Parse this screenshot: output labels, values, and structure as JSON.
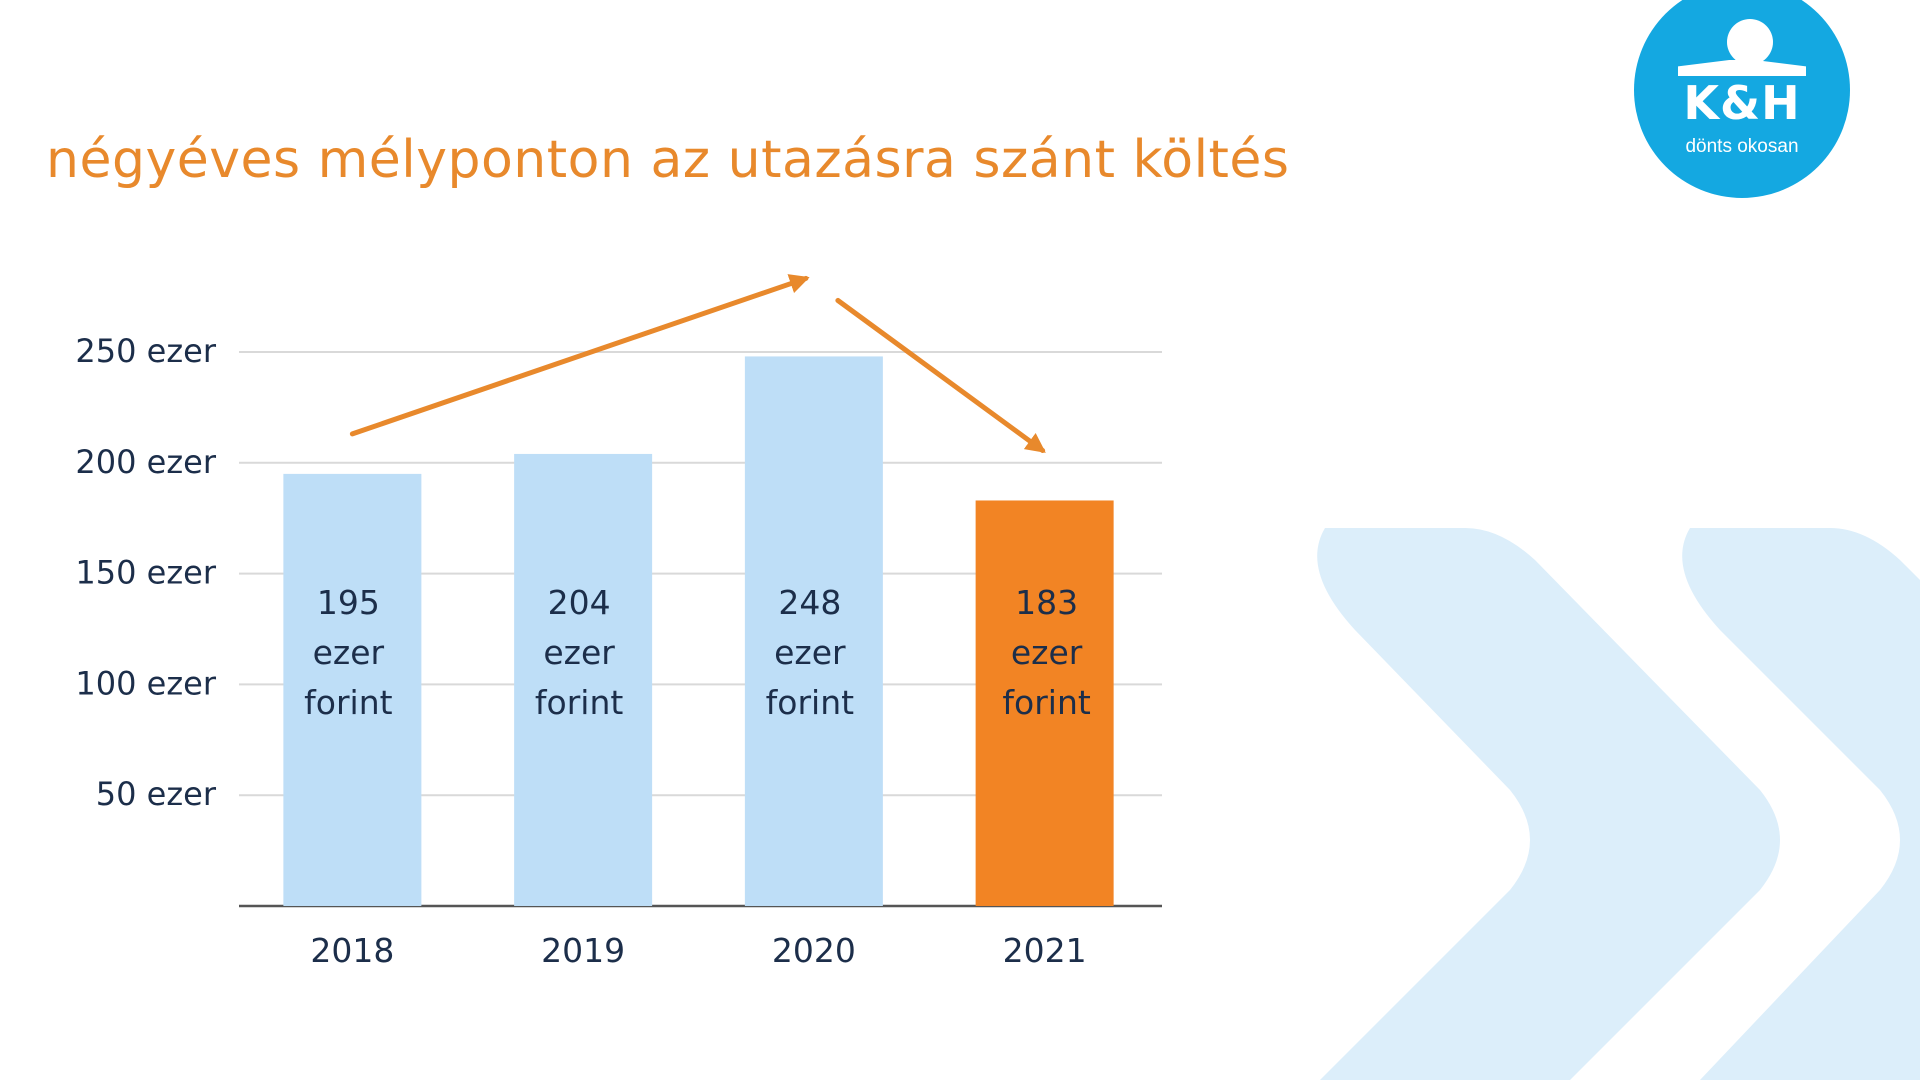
{
  "slide": {
    "title": "négyéves mélyponton az utazásra szánt költés"
  },
  "logo": {
    "brand": "K&H",
    "tagline": "dönts okosan",
    "color": "#14A8E1"
  },
  "colors": {
    "bar": "#BEDEF7",
    "highlight": "#F28424",
    "accent": "#E8892C",
    "chevron": "#DCEEFA",
    "text": "#1C2E4A",
    "grid": "#D9D9D9",
    "axis": "#555555"
  },
  "chart_data": {
    "type": "bar",
    "categories": [
      "2018",
      "2019",
      "2020",
      "2021"
    ],
    "values": [
      195,
      204,
      248,
      183
    ],
    "bar_labels": [
      [
        "195",
        "ezer",
        "forint"
      ],
      [
        "204",
        "ezer",
        "forint"
      ],
      [
        "248",
        "ezer",
        "forint"
      ],
      [
        "183",
        "ezer",
        "forint"
      ]
    ],
    "highlight_index": 3,
    "yticks": [
      50,
      100,
      150,
      200,
      250
    ],
    "ytick_labels": [
      "50 ezer",
      "100 ezer",
      "150 ezer",
      "200 ezer",
      "250 ezer"
    ],
    "ylim": [
      0,
      250
    ],
    "grid": true,
    "trend_arrows": [
      {
        "from": "2018",
        "to": "2020",
        "direction": "up"
      },
      {
        "from": "2020",
        "to": "2021",
        "direction": "down"
      }
    ]
  }
}
